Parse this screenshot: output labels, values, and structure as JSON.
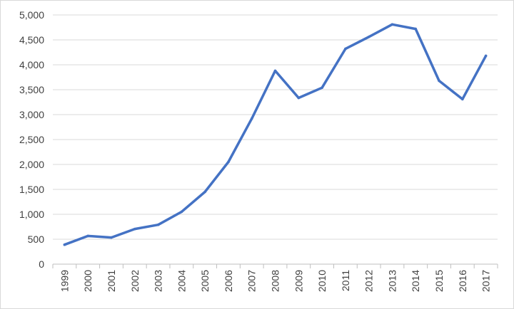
{
  "chart_data": {
    "type": "line",
    "title": "",
    "xlabel": "",
    "ylabel": "",
    "x": [
      "1999",
      "2000",
      "2001",
      "2002",
      "2003",
      "2004",
      "2005",
      "2006",
      "2007",
      "2008",
      "2009",
      "2010",
      "2011",
      "2012",
      "2013",
      "2014",
      "2015",
      "2016",
      "2017"
    ],
    "series": [
      {
        "values": [
          390,
          565,
          535,
          705,
          790,
          1050,
          1450,
          2050,
          2920,
          3880,
          3335,
          3540,
          4320,
          4560,
          4810,
          4720,
          3680,
          3310,
          4180
        ]
      }
    ],
    "ylim": [
      0,
      5000
    ],
    "yticks": [
      0,
      500,
      1000,
      1500,
      2000,
      2500,
      3000,
      3500,
      4000,
      4500,
      5000
    ],
    "ytick_labels": [
      "0",
      "500",
      "1,000",
      "1,500",
      "2,000",
      "2,500",
      "3,000",
      "3,500",
      "4,000",
      "4,500",
      "5,000"
    ],
    "grid": true,
    "legend": "none",
    "colors": {
      "line": "#4472c4",
      "grid": "#d9d9d9"
    }
  }
}
